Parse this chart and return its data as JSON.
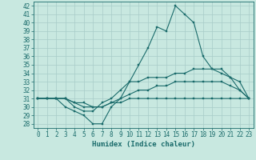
{
  "xlabel": "Humidex (Indice chaleur)",
  "ylabel": "",
  "xlim": [
    -0.5,
    23.5
  ],
  "ylim": [
    27.5,
    42.5
  ],
  "xticks": [
    0,
    1,
    2,
    3,
    4,
    5,
    6,
    7,
    8,
    9,
    10,
    11,
    12,
    13,
    14,
    15,
    16,
    17,
    18,
    19,
    20,
    21,
    22,
    23
  ],
  "yticks": [
    28,
    29,
    30,
    31,
    32,
    33,
    34,
    35,
    36,
    37,
    38,
    39,
    40,
    41,
    42
  ],
  "bg_color": "#c8e8e0",
  "grid_color": "#a8ccc8",
  "line_color": "#1a6b6b",
  "line1": [
    31,
    31,
    31,
    30,
    29.5,
    29,
    28,
    28,
    30,
    31,
    33,
    35,
    37,
    39.5,
    39,
    42,
    41,
    40,
    36,
    34.5,
    34,
    33.5,
    32,
    31
  ],
  "line2": [
    31,
    31,
    31,
    31,
    30,
    29.5,
    29.5,
    30.5,
    31,
    32,
    33,
    33,
    33.5,
    33.5,
    33.5,
    34,
    34,
    34.5,
    34.5,
    34.5,
    34.5,
    33.5,
    33,
    31
  ],
  "line3": [
    31,
    31,
    31,
    31,
    30.5,
    30,
    30,
    30,
    30.5,
    31,
    31.5,
    32,
    32,
    32.5,
    32.5,
    33,
    33,
    33,
    33,
    33,
    33,
    32.5,
    32,
    31
  ],
  "line4": [
    31,
    31,
    31,
    31,
    30.5,
    30.5,
    30,
    30,
    30.5,
    30.5,
    31,
    31,
    31,
    31,
    31,
    31,
    31,
    31,
    31,
    31,
    31,
    31,
    31,
    31
  ]
}
